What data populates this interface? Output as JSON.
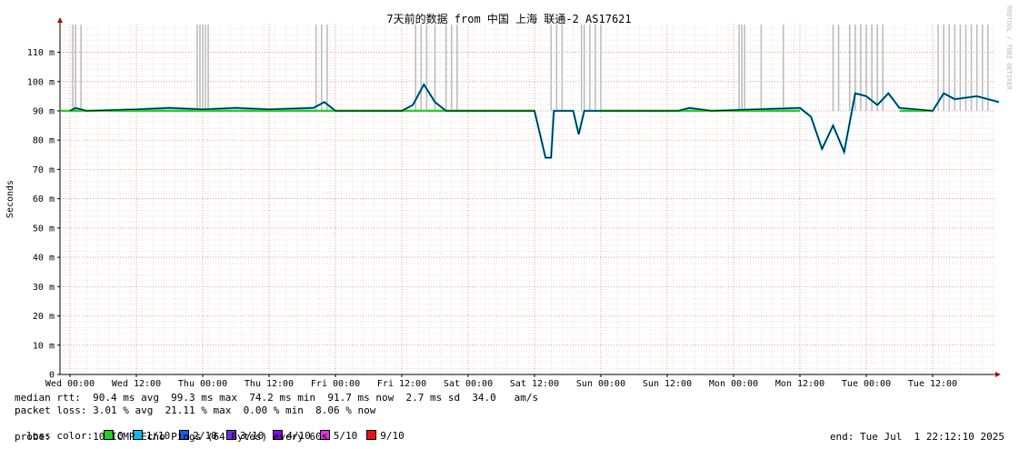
{
  "chart_data": {
    "type": "line",
    "title": "7天前的数据 from 中国 上海 联通-2 AS17621",
    "ylabel": "Seconds",
    "watermark": "RRDTOOL / TOBI OETIKER",
    "ylim": [
      0,
      120
    ],
    "y_ticks": [
      "0",
      "10 m",
      "20 m",
      "30 m",
      "40 m",
      "50 m",
      "60 m",
      "70 m",
      "80 m",
      "90 m",
      "100 m",
      "110 m"
    ],
    "x_ticks": [
      "Wed 00:00",
      "Wed 12:00",
      "Thu 00:00",
      "Thu 12:00",
      "Fri 00:00",
      "Fri 12:00",
      "Sat 00:00",
      "Sat 12:00",
      "Sun 00:00",
      "Sun 12:00",
      "Mon 00:00",
      "Mon 12:00",
      "Tue 00:00",
      "Tue 12:00"
    ],
    "x_unit": "hours since Wed 00:00",
    "x_range": [
      -1.5,
      168
    ],
    "grid": true,
    "median_rtt_series": [
      [
        0,
        90
      ],
      [
        1,
        91
      ],
      [
        3,
        90
      ],
      [
        12,
        90.5
      ],
      [
        18,
        91
      ],
      [
        24,
        90.5
      ],
      [
        30,
        91
      ],
      [
        36,
        90.5
      ],
      [
        44,
        91
      ],
      [
        46,
        93
      ],
      [
        48,
        90
      ],
      [
        60,
        90
      ],
      [
        62,
        92
      ],
      [
        64,
        99
      ],
      [
        66,
        93
      ],
      [
        68,
        90
      ],
      [
        72,
        90
      ],
      [
        84,
        90
      ],
      [
        86,
        74
      ],
      [
        87,
        74
      ],
      [
        87.5,
        90
      ],
      [
        91,
        90
      ],
      [
        92,
        82
      ],
      [
        93,
        90
      ],
      [
        96,
        90
      ],
      [
        110,
        90
      ],
      [
        112,
        91
      ],
      [
        116,
        90
      ],
      [
        124,
        90.5
      ],
      [
        132,
        91
      ],
      [
        134,
        88
      ],
      [
        136,
        77
      ],
      [
        138,
        85
      ],
      [
        140,
        76
      ],
      [
        142,
        96
      ],
      [
        144,
        95
      ],
      [
        146,
        92
      ],
      [
        148,
        96
      ],
      [
        150,
        91
      ],
      [
        156,
        90
      ],
      [
        158,
        96
      ],
      [
        160,
        94
      ],
      [
        164,
        95
      ],
      [
        168,
        93
      ]
    ],
    "loss_spikes_hours": [
      0.5,
      1,
      2,
      23,
      23.5,
      24,
      24.5,
      25,
      44.5,
      45.5,
      46.5,
      62.5,
      63.5,
      64.5,
      66,
      68,
      69,
      70,
      87,
      88,
      89,
      92.5,
      93,
      94,
      95,
      96,
      121,
      121.5,
      122,
      125,
      129,
      138,
      139,
      141,
      142,
      143,
      144,
      145,
      146,
      147,
      157,
      158,
      159,
      160,
      161,
      162,
      163,
      164,
      165,
      166
    ],
    "loss_colors": [
      {
        "label": "0",
        "color": "#28cc28"
      },
      {
        "label": "1/10",
        "color": "#11b8ee"
      },
      {
        "label": "2/10",
        "color": "#1f5ce6"
      },
      {
        "label": "3/10",
        "color": "#6d2de0"
      },
      {
        "label": "4/10",
        "color": "#8a08e6"
      },
      {
        "label": "5/10",
        "color": "#e22ee2"
      },
      {
        "label": "9/10",
        "color": "#ee1111"
      }
    ]
  },
  "stats": {
    "median_rtt": "median rtt:  90.4 ms avg  99.3 ms max  74.2 ms min  91.7 ms now  2.7 ms sd  34.0   am/s",
    "packet_loss": "packet loss: 3.01 % avg  21.11 % max  0.00 % min  8.06 % now",
    "loss_color_label": "loss color:",
    "probe": "probe:       10 ICMP Echo Pings (64 Bytes) every 60s",
    "end": "end: Tue Jul  1 22:12:10 2025"
  }
}
